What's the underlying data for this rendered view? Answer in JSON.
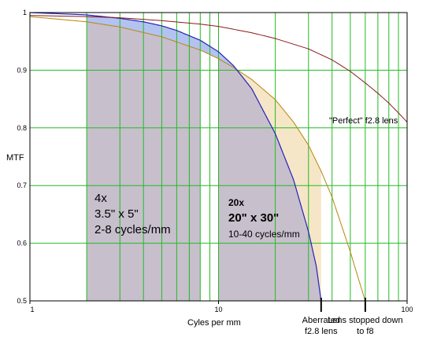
{
  "chart_data": {
    "type": "line",
    "xscale": "log",
    "xlim": [
      1,
      100
    ],
    "ylim": [
      0.5,
      1.0
    ],
    "ylabel": "MTF",
    "xlabel": "Cyles per mm",
    "x_ticks": [
      {
        "value": 1,
        "label": "1"
      },
      {
        "value": 10,
        "label": "10"
      },
      {
        "value": 100,
        "label": "100"
      }
    ],
    "y_ticks": [
      {
        "value": 0.5,
        "label": "0.5"
      },
      {
        "value": 0.6,
        "label": "0.6"
      },
      {
        "value": 0.7,
        "label": "0.7"
      },
      {
        "value": 0.8,
        "label": "0.8"
      },
      {
        "value": 0.9,
        "label": "0.9"
      },
      {
        "value": 1.0,
        "label": "1"
      }
    ],
    "grid": true,
    "series": [
      {
        "name": "\"Perfect\" f2.8 lens",
        "color": "#8b1a1a",
        "x": [
          1,
          2,
          3,
          5,
          8,
          10,
          15,
          20,
          30,
          40,
          50,
          60,
          70,
          80,
          90,
          100
        ],
        "y": [
          0.995,
          0.993,
          0.991,
          0.986,
          0.98,
          0.976,
          0.965,
          0.955,
          0.937,
          0.918,
          0.898,
          0.878,
          0.86,
          0.843,
          0.826,
          0.81
        ]
      },
      {
        "name": "Aberrated f2.8 lens",
        "color": "#2222bb",
        "x": [
          1,
          2,
          3,
          4,
          5,
          6,
          8,
          10,
          12,
          15,
          20,
          25,
          30,
          33,
          35
        ],
        "y": [
          1.0,
          0.996,
          0.99,
          0.984,
          0.977,
          0.969,
          0.952,
          0.932,
          0.908,
          0.868,
          0.79,
          0.71,
          0.62,
          0.56,
          0.5
        ]
      },
      {
        "name": "Lens stopped down to f8",
        "color": "#b8860b",
        "x": [
          1,
          2,
          3,
          5,
          8,
          10,
          12,
          15,
          20,
          25,
          30,
          35,
          40,
          45,
          50,
          55,
          60
        ],
        "y": [
          0.993,
          0.984,
          0.975,
          0.958,
          0.935,
          0.92,
          0.905,
          0.884,
          0.849,
          0.81,
          0.77,
          0.725,
          0.68,
          0.63,
          0.585,
          0.54,
          0.5
        ]
      }
    ],
    "regions": [
      {
        "name": "4x",
        "label_lines": [
          "4x",
          "3.5\" x 5\"",
          "2-8 cycles/mm"
        ],
        "x_range": [
          2,
          8
        ],
        "fill": "#c7bfcc"
      },
      {
        "name": "20x",
        "label_lines": [
          "20x",
          "20\" x 30\"",
          "10-40 cycles/mm"
        ],
        "x_range": [
          10,
          40
        ],
        "fill": "#c7bfcc"
      }
    ],
    "fills": {
      "under_aberrated": "#c7bfcc",
      "between_perfect_aberrated": "#b3c3f0",
      "between_f8_aberrated": "#f6e6c8"
    },
    "grid_color": "#22bb22",
    "annotations": [
      {
        "text": "\"Perfect\" f2.8 lens",
        "at_series": 0
      },
      {
        "text": "Aberrated f2.8 lens",
        "x": 35
      },
      {
        "text": "Lens stopped down to f8",
        "x": 60
      }
    ]
  }
}
